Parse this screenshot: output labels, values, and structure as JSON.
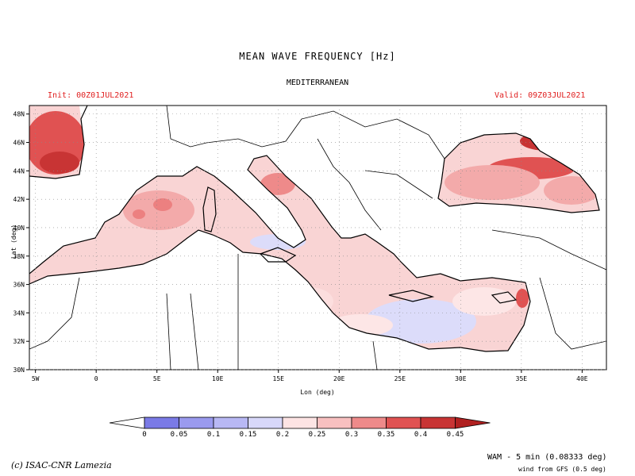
{
  "header": {
    "title": "MEAN WAVE FREQUENCY [Hz]",
    "region": "MEDITERRANEAN",
    "init": "Init: 00Z01JUL2021",
    "valid": "Valid: 09Z03JUL2021"
  },
  "axes": {
    "xlabel": "Lon (deg)",
    "ylabel": "Lat (deg)",
    "lon_ticks": [
      "5W",
      "0",
      "5E",
      "10E",
      "15E",
      "20E",
      "25E",
      "30E",
      "35E",
      "40E"
    ],
    "lat_ticks": [
      "30N",
      "32N",
      "34N",
      "36N",
      "38N",
      "40N",
      "42N",
      "44N",
      "46N",
      "48N"
    ],
    "lon_range": [
      -5.5,
      42
    ],
    "lat_range": [
      30,
      48.6
    ]
  },
  "colorbar": {
    "labels": [
      "0",
      "0.05",
      "0.1",
      "0.15",
      "0.2",
      "0.25",
      "0.3",
      "0.35",
      "0.4",
      "0.45"
    ],
    "colors": [
      "#ffffff",
      "#7a7ae6",
      "#9a9aee",
      "#b8b8f4",
      "#d8d8fa",
      "#fde4e4",
      "#f8c0c0",
      "#ee8a8a",
      "#e05252",
      "#c83434",
      "#b02020"
    ]
  },
  "footer": {
    "credit": "(c) ISAC-CNR Lamezia",
    "model": "WAM - 5 min (0.08333 deg)",
    "wind": "wind from GFS (0.5 deg)"
  }
}
